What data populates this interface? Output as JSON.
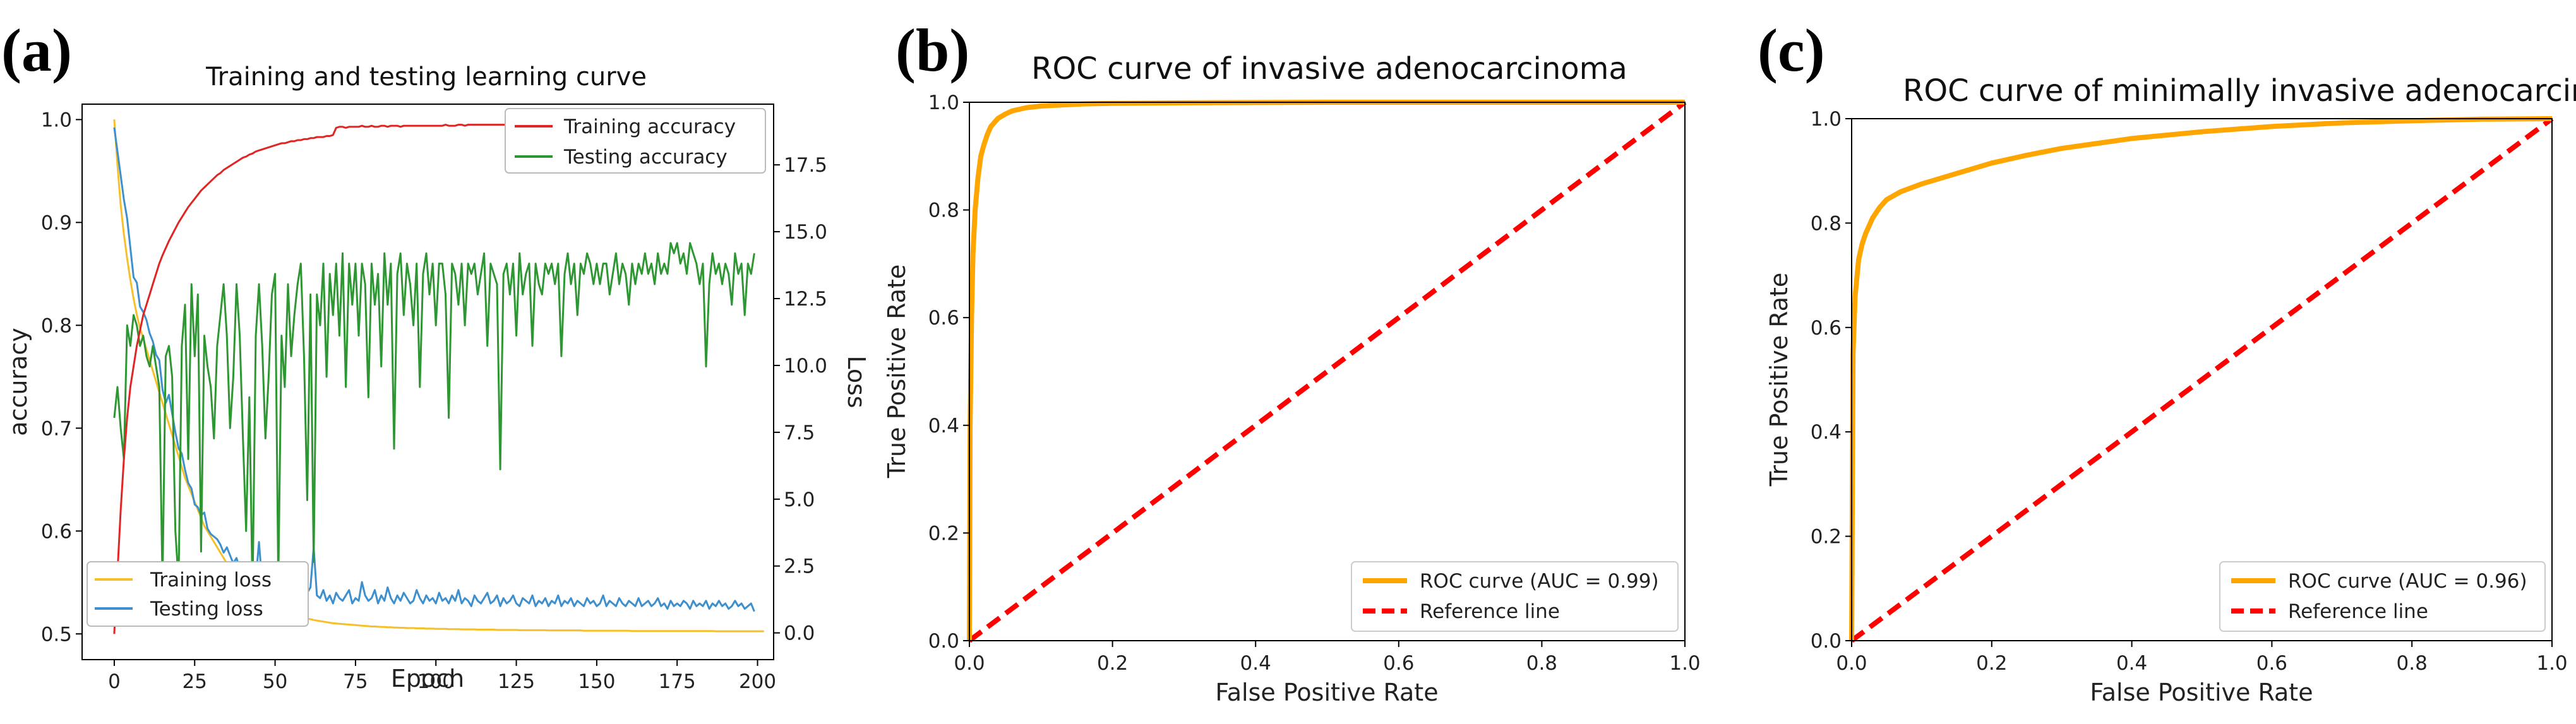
{
  "panels": {
    "a": {
      "label": "(a)"
    },
    "b": {
      "label": "(b)"
    },
    "c": {
      "label": "(c)"
    }
  },
  "chart_data": [
    {
      "id": "a",
      "type": "line",
      "title": "Training and testing learning curve",
      "xlabel": "Epoch",
      "ylabel": "accuracy",
      "y2label": "Loss",
      "xlim": [
        -10,
        205
      ],
      "ylim": [
        0.475,
        1.015
      ],
      "y2lim": [
        -1.0,
        19.77
      ],
      "xticks": [
        0,
        25,
        50,
        75,
        100,
        125,
        150,
        175,
        200
      ],
      "yticks": [
        0.5,
        0.6,
        0.7,
        0.8,
        0.9,
        1.0
      ],
      "y2ticks": [
        0.0,
        2.5,
        5.0,
        7.5,
        10.0,
        12.5,
        15.0,
        17.5
      ],
      "legend_top": "top-right",
      "legend_bottom": "bottom-left",
      "colors": {
        "train_acc": "#e02525",
        "test_acc": "#2e9632",
        "train_loss": "#f5c02a",
        "test_loss": "#3d8fcd"
      },
      "series": [
        {
          "name": "Training accuracy",
          "axis": "left",
          "values": [
            0.5,
            0.56,
            0.62,
            0.67,
            0.71,
            0.74,
            0.76,
            0.78,
            0.795,
            0.81,
            0.82,
            0.83,
            0.84,
            0.85,
            0.86,
            0.868,
            0.875,
            0.882,
            0.888,
            0.894,
            0.9,
            0.905,
            0.91,
            0.915,
            0.919,
            0.923,
            0.927,
            0.931,
            0.934,
            0.937,
            0.94,
            0.943,
            0.946,
            0.948,
            0.951,
            0.953,
            0.955,
            0.957,
            0.959,
            0.961,
            0.963,
            0.964,
            0.966,
            0.967,
            0.969,
            0.97,
            0.971,
            0.972,
            0.973,
            0.974,
            0.975,
            0.976,
            0.977,
            0.977,
            0.978,
            0.979,
            0.979,
            0.98,
            0.98,
            0.981,
            0.981,
            0.982,
            0.982,
            0.983,
            0.983,
            0.983,
            0.984,
            0.984,
            0.985,
            0.992,
            0.993,
            0.993,
            0.992,
            0.993,
            0.993,
            0.993,
            0.993,
            0.994,
            0.993,
            0.993,
            0.994,
            0.993,
            0.993,
            0.994,
            0.994,
            0.993,
            0.994,
            0.994,
            0.994,
            0.993,
            0.994,
            0.994,
            0.994,
            0.994,
            0.994,
            0.994,
            0.994,
            0.994,
            0.994,
            0.994,
            0.994,
            0.994,
            0.994,
            0.995,
            0.994,
            0.994,
            0.994,
            0.995,
            0.995,
            0.994,
            0.995,
            0.995,
            0.995,
            0.995,
            0.995,
            0.995,
            0.995,
            0.995,
            0.995,
            0.995,
            0.995,
            0.995,
            0.995,
            0.995,
            0.995,
            0.995,
            0.996,
            0.995,
            0.995,
            0.996,
            0.996,
            0.996,
            0.996,
            0.996,
            0.996,
            0.996,
            0.996,
            0.996,
            0.996,
            0.996,
            0.996,
            0.996,
            0.996,
            0.996,
            0.996,
            0.996,
            0.996,
            0.996,
            0.996,
            0.996,
            0.996,
            0.996,
            0.996,
            0.996,
            0.996,
            0.996,
            0.996,
            0.996,
            0.996,
            0.996,
            0.996,
            0.996,
            0.996,
            0.996,
            0.996,
            0.996,
            0.996,
            0.996,
            0.996,
            0.996,
            0.996,
            0.996,
            0.996,
            0.996,
            0.996,
            0.996,
            0.996,
            0.996,
            0.996,
            0.996,
            0.996,
            0.996,
            0.996,
            0.996,
            0.996,
            0.996,
            0.996,
            0.996,
            0.996,
            0.996,
            0.996,
            0.996,
            0.996,
            0.996,
            0.996,
            0.996,
            0.996,
            0.996,
            0.996,
            0.996
          ]
        },
        {
          "name": "Testing accuracy",
          "axis": "left",
          "values": [
            0.71,
            0.74,
            0.7,
            0.67,
            0.8,
            0.78,
            0.81,
            0.8,
            0.78,
            0.79,
            0.77,
            0.76,
            0.78,
            0.76,
            0.74,
            0.55,
            0.77,
            0.78,
            0.75,
            0.6,
            0.55,
            0.78,
            0.82,
            0.67,
            0.84,
            0.77,
            0.83,
            0.58,
            0.79,
            0.76,
            0.74,
            0.69,
            0.78,
            0.81,
            0.84,
            0.79,
            0.7,
            0.75,
            0.84,
            0.79,
            0.69,
            0.6,
            0.73,
            0.54,
            0.79,
            0.84,
            0.78,
            0.69,
            0.75,
            0.83,
            0.85,
            0.55,
            0.79,
            0.74,
            0.84,
            0.77,
            0.81,
            0.84,
            0.86,
            0.77,
            0.63,
            0.83,
            0.57,
            0.83,
            0.8,
            0.86,
            0.75,
            0.85,
            0.81,
            0.86,
            0.79,
            0.87,
            0.74,
            0.86,
            0.82,
            0.86,
            0.79,
            0.86,
            0.84,
            0.73,
            0.86,
            0.82,
            0.85,
            0.76,
            0.87,
            0.82,
            0.86,
            0.68,
            0.85,
            0.87,
            0.81,
            0.86,
            0.84,
            0.8,
            0.86,
            0.74,
            0.85,
            0.87,
            0.83,
            0.86,
            0.8,
            0.86,
            0.86,
            0.83,
            0.71,
            0.86,
            0.85,
            0.82,
            0.86,
            0.8,
            0.86,
            0.85,
            0.86,
            0.83,
            0.85,
            0.87,
            0.78,
            0.86,
            0.85,
            0.84,
            0.66,
            0.85,
            0.86,
            0.83,
            0.86,
            0.79,
            0.87,
            0.83,
            0.85,
            0.86,
            0.78,
            0.86,
            0.84,
            0.83,
            0.86,
            0.85,
            0.86,
            0.84,
            0.86,
            0.77,
            0.85,
            0.87,
            0.84,
            0.86,
            0.81,
            0.86,
            0.85,
            0.87,
            0.86,
            0.84,
            0.86,
            0.84,
            0.86,
            0.86,
            0.83,
            0.85,
            0.87,
            0.84,
            0.86,
            0.85,
            0.82,
            0.86,
            0.84,
            0.86,
            0.85,
            0.87,
            0.85,
            0.86,
            0.84,
            0.87,
            0.85,
            0.86,
            0.85,
            0.88,
            0.87,
            0.88,
            0.86,
            0.87,
            0.85,
            0.88,
            0.87,
            0.86,
            0.84,
            0.86,
            0.76,
            0.84,
            0.87,
            0.85,
            0.86,
            0.84,
            0.86,
            0.85,
            0.82,
            0.87,
            0.85,
            0.86,
            0.81,
            0.86,
            0.85,
            0.87
          ]
        },
        {
          "name": "Training loss",
          "axis": "right",
          "values": [
            19.2,
            17.5,
            16,
            14.9,
            14,
            13.2,
            12.5,
            11.9,
            11.4,
            11,
            10.6,
            10.2,
            9.8,
            9.4,
            9,
            8.6,
            8.2,
            7.8,
            7.4,
            7,
            6.6,
            6.2,
            5.8,
            5.5,
            5.2,
            4.9,
            4.6,
            4.3,
            4,
            3.8,
            3.6,
            3.4,
            3.2,
            3,
            2.8,
            2.6,
            2.4,
            2.25,
            2.1,
            1.95,
            1.8,
            1.7,
            1.6,
            1.5,
            1.42,
            1.34,
            1.26,
            1.18,
            1.1,
            1.04,
            0.98,
            0.92,
            0.86,
            0.81,
            0.76,
            0.72,
            0.68,
            0.64,
            0.6,
            0.57,
            0.54,
            0.51,
            0.48,
            0.46,
            0.44,
            0.42,
            0.4,
            0.38,
            0.36,
            0.35,
            0.34,
            0.33,
            0.32,
            0.31,
            0.3,
            0.29,
            0.28,
            0.27,
            0.26,
            0.25,
            0.24,
            0.24,
            0.23,
            0.22,
            0.22,
            0.21,
            0.21,
            0.2,
            0.2,
            0.19,
            0.19,
            0.18,
            0.18,
            0.18,
            0.17,
            0.17,
            0.17,
            0.16,
            0.16,
            0.16,
            0.15,
            0.15,
            0.15,
            0.15,
            0.14,
            0.14,
            0.14,
            0.14,
            0.13,
            0.13,
            0.13,
            0.13,
            0.13,
            0.12,
            0.12,
            0.12,
            0.12,
            0.12,
            0.12,
            0.11,
            0.11,
            0.11,
            0.11,
            0.11,
            0.11,
            0.11,
            0.1,
            0.1,
            0.1,
            0.1,
            0.1,
            0.1,
            0.1,
            0.1,
            0.1,
            0.09,
            0.09,
            0.09,
            0.09,
            0.09,
            0.09,
            0.09,
            0.09,
            0.09,
            0.09,
            0.09,
            0.08,
            0.08,
            0.08,
            0.08,
            0.08,
            0.08,
            0.08,
            0.08,
            0.08,
            0.08,
            0.08,
            0.08,
            0.08,
            0.08,
            0.08,
            0.07,
            0.07,
            0.07,
            0.07,
            0.07,
            0.07,
            0.07,
            0.07,
            0.07,
            0.07,
            0.07,
            0.07,
            0.07,
            0.07,
            0.07,
            0.07,
            0.07,
            0.07,
            0.07,
            0.07,
            0.07,
            0.07,
            0.07,
            0.07,
            0.07,
            0.07,
            0.06,
            0.06,
            0.06,
            0.06,
            0.06,
            0.06,
            0.06,
            0.06,
            0.06,
            0.06,
            0.06,
            0.06,
            0.06,
            0.06,
            0.06,
            0.06
          ]
        },
        {
          "name": "Testing loss",
          "axis": "right",
          "values": [
            18.9,
            18,
            17.1,
            16.2,
            15.5,
            14.4,
            13.3,
            13.1,
            12.2,
            12,
            11.7,
            11.2,
            10.9,
            10.4,
            10.2,
            9.1,
            8.6,
            8.9,
            8.2,
            7.5,
            6.9,
            6.7,
            6.1,
            5.6,
            5.4,
            4.8,
            4.7,
            4.4,
            4.5,
            3.9,
            3.7,
            3.6,
            3.5,
            3.3,
            3.0,
            3.2,
            2.9,
            2.6,
            2.8,
            2.4,
            2.3,
            2.5,
            2.1,
            1.9,
            2.0,
            3.4,
            1.8,
            1.6,
            1.9,
            1.7,
            1.5,
            1.8,
            1.4,
            1.6,
            1.7,
            1.3,
            1.5,
            1.6,
            1.4,
            1.2,
            1.5,
            1.7,
            3.2,
            1.4,
            1.3,
            1.6,
            1.2,
            1.4,
            1.1,
            1.5,
            1.3,
            1.2,
            1.4,
            1.6,
            1.1,
            1.3,
            1.2,
            1.9,
            1.4,
            1.2,
            1.3,
            1.6,
            1.1,
            1.4,
            1.2,
            1.7,
            1.3,
            1.1,
            1.4,
            1.2,
            1.5,
            1.3,
            1.1,
            1.2,
            1.6,
            1.3,
            1.1,
            1.4,
            1.2,
            1.3,
            1.1,
            1.5,
            1.2,
            1.3,
            1.1,
            1.4,
            1.2,
            1.6,
            1.1,
            1.3,
            1.2,
            1.0,
            1.4,
            1.2,
            1.1,
            1.3,
            1.5,
            1.1,
            1.2,
            1.4,
            1.0,
            1.3,
            1.1,
            1.2,
            1.4,
            1.1,
            1.0,
            1.3,
            1.2,
            1.1,
            1.4,
            1.0,
            1.2,
            1.1,
            1.3,
            1.0,
            1.2,
            1.1,
            1.4,
            1.0,
            1.2,
            1.1,
            1.3,
            1.0,
            1.2,
            1.1,
            1.0,
            1.3,
            1.1,
            1.2,
            1.0,
            1.1,
            1.4,
            1.0,
            1.2,
            1.1,
            1.0,
            1.3,
            1.1,
            1.0,
            1.2,
            1.1,
            1.0,
            1.3,
            1.0,
            1.1,
            1.2,
            1.0,
            1.1,
            1.3,
            1.0,
            1.1,
            0.9,
            1.2,
            1.0,
            1.1,
            1.0,
            1.2,
            1.1,
            0.9,
            1.2,
            1.0,
            1.1,
            1.0,
            1.2,
            0.9,
            1.1,
            1.0,
            1.2,
            1.0,
            1.1,
            0.9,
            1.0,
            1.2,
            1.0,
            1.1,
            0.9,
            1.0,
            1.1,
            0.8
          ]
        }
      ]
    },
    {
      "id": "b",
      "type": "line",
      "title": "ROC curve of invasive adenocarcinoma",
      "xlabel": "False Positive Rate",
      "ylabel": "True Positive Rate",
      "xlim": [
        0,
        1
      ],
      "ylim": [
        0,
        1
      ],
      "ticks": [
        "0.0",
        "0.2",
        "0.4",
        "0.6",
        "0.8",
        "1.0"
      ],
      "legend": "bottom-right",
      "colors": {
        "roc": "#ffa500",
        "reference": "#ff0000"
      },
      "series": [
        {
          "name": "ROC curve (AUC = 0.99)",
          "x": [
            0,
            0.001,
            0.003,
            0.005,
            0.008,
            0.012,
            0.016,
            0.02,
            0.025,
            0.03,
            0.04,
            0.05,
            0.06,
            0.08,
            0.1,
            0.13,
            0.16,
            0.2,
            0.3,
            0.5,
            0.7,
            1.0
          ],
          "y": [
            0,
            0.4,
            0.6,
            0.72,
            0.8,
            0.86,
            0.9,
            0.92,
            0.94,
            0.955,
            0.97,
            0.978,
            0.984,
            0.99,
            0.993,
            0.995,
            0.997,
            0.998,
            0.999,
            1,
            1,
            1
          ]
        },
        {
          "name": "Reference line",
          "x": [
            0,
            1
          ],
          "y": [
            0,
            1
          ]
        }
      ]
    },
    {
      "id": "c",
      "type": "line",
      "title": "ROC curve of minimally invasive adenocarcinoma",
      "xlabel": "False Positive Rate",
      "ylabel": "True Positive Rate",
      "xlim": [
        0,
        1
      ],
      "ylim": [
        0,
        1
      ],
      "ticks": [
        "0.0",
        "0.2",
        "0.4",
        "0.6",
        "0.8",
        "1.0"
      ],
      "legend": "bottom-right",
      "colors": {
        "roc": "#ffa500",
        "reference": "#ff0000"
      },
      "series": [
        {
          "name": "ROC curve (AUC = 0.96)",
          "x": [
            0,
            0.002,
            0.005,
            0.01,
            0.015,
            0.02,
            0.03,
            0.04,
            0.05,
            0.07,
            0.1,
            0.15,
            0.2,
            0.25,
            0.3,
            0.4,
            0.5,
            0.6,
            0.7,
            0.8,
            0.9,
            1.0
          ],
          "y": [
            0,
            0.55,
            0.66,
            0.73,
            0.76,
            0.78,
            0.81,
            0.83,
            0.845,
            0.86,
            0.875,
            0.895,
            0.915,
            0.93,
            0.943,
            0.962,
            0.975,
            0.985,
            0.992,
            0.996,
            0.999,
            1
          ]
        },
        {
          "name": "Reference line",
          "x": [
            0,
            1
          ],
          "y": [
            0,
            1
          ]
        }
      ]
    }
  ]
}
